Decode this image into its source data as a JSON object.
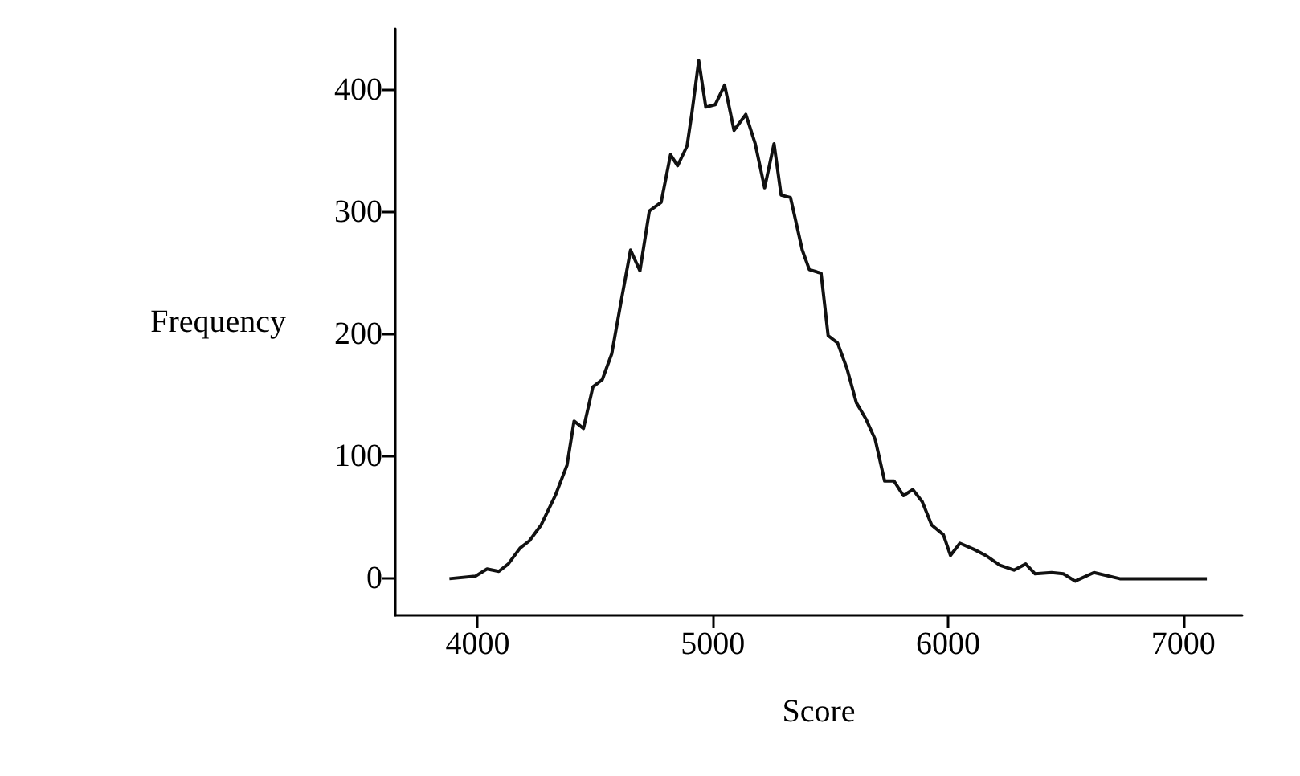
{
  "chart_data": {
    "type": "line",
    "xlabel": "Score",
    "ylabel": "Frequency",
    "series": [
      {
        "color": "#111111",
        "x": [
          3880,
          3990,
          4040,
          4090,
          4130,
          4180,
          4220,
          4270,
          4330,
          4380,
          4410,
          4450,
          4490,
          4530,
          4570,
          4610,
          4650,
          4690,
          4730,
          4780,
          4820,
          4850,
          4890,
          4910,
          4940,
          4970,
          5010,
          5050,
          5090,
          5140,
          5180,
          5220,
          5260,
          5290,
          5330,
          5380,
          5410,
          5460,
          5490,
          5530,
          5570,
          5610,
          5650,
          5690,
          5730,
          5770,
          5810,
          5850,
          5890,
          5930,
          5980,
          6010,
          6050,
          6110,
          6160,
          6220,
          6280,
          6330,
          6370,
          6440,
          6490,
          6540,
          6620,
          6730,
          6940,
          7100
        ],
        "values": [
          0,
          2,
          8,
          6,
          12,
          25,
          31,
          44,
          68,
          93,
          129,
          123,
          157,
          163,
          184,
          227,
          269,
          252,
          301,
          308,
          347,
          338,
          354,
          380,
          424,
          386,
          388,
          404,
          367,
          380,
          356,
          320,
          356,
          314,
          312,
          269,
          253,
          250,
          199,
          193,
          172,
          144,
          131,
          114,
          80,
          80,
          68,
          73,
          63,
          44,
          36,
          19,
          29,
          24,
          19,
          11,
          7,
          12,
          4,
          5,
          4,
          -2,
          5,
          0,
          0,
          0
        ]
      }
    ],
    "xlim": [
      3650,
      7250
    ],
    "ylim": [
      -30,
      450
    ],
    "xticks": [
      4000,
      5000,
      6000,
      7000
    ],
    "yticks": [
      0,
      100,
      200,
      300,
      400
    ],
    "grid": false,
    "marker": "none",
    "line_style": "solid"
  }
}
